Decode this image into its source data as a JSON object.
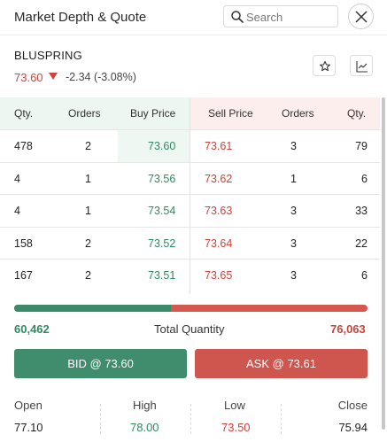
{
  "header": {
    "title": "Market Depth & Quote",
    "search_placeholder": "Search"
  },
  "stock": {
    "symbol": "BLUSPRING",
    "ltp": "73.60",
    "change": "-2.34 (-3.08%)"
  },
  "depth": {
    "columns": {
      "bid_qty": "Qty.",
      "bid_orders": "Orders",
      "buy_price": "Buy Price",
      "sell_price": "Sell Price",
      "ask_orders": "Orders",
      "ask_qty": "Qty."
    },
    "rows": [
      {
        "bid_qty": "478",
        "bid_orders": "2",
        "buy_price": "73.60",
        "sell_price": "73.61",
        "ask_orders": "3",
        "ask_qty": "79"
      },
      {
        "bid_qty": "4",
        "bid_orders": "1",
        "buy_price": "73.56",
        "sell_price": "73.62",
        "ask_orders": "1",
        "ask_qty": "6"
      },
      {
        "bid_qty": "4",
        "bid_orders": "1",
        "buy_price": "73.54",
        "sell_price": "73.63",
        "ask_orders": "3",
        "ask_qty": "33"
      },
      {
        "bid_qty": "158",
        "bid_orders": "2",
        "buy_price": "73.52",
        "sell_price": "73.64",
        "ask_orders": "3",
        "ask_qty": "22"
      },
      {
        "bid_qty": "167",
        "bid_orders": "2",
        "buy_price": "73.51",
        "sell_price": "73.65",
        "ask_orders": "3",
        "ask_qty": "6"
      }
    ]
  },
  "totals": {
    "bid_total": "60,462",
    "label": "Total Quantity",
    "ask_total": "76,063",
    "bid_fraction": 0.4429
  },
  "actions": {
    "bid_label": "BID @ 73.60",
    "ask_label": "ASK @ 73.61"
  },
  "ohlc": {
    "open_label": "Open",
    "open": "77.10",
    "high_label": "High",
    "high": "78.00",
    "low_label": "Low",
    "low": "73.50",
    "close_label": "Close",
    "close": "75.94"
  },
  "colors": {
    "bid": "#2e8a5f",
    "ask": "#c8443c"
  },
  "icons": [
    "search-icon",
    "close-icon",
    "star-icon",
    "chart-icon",
    "down-arrow-icon"
  ]
}
